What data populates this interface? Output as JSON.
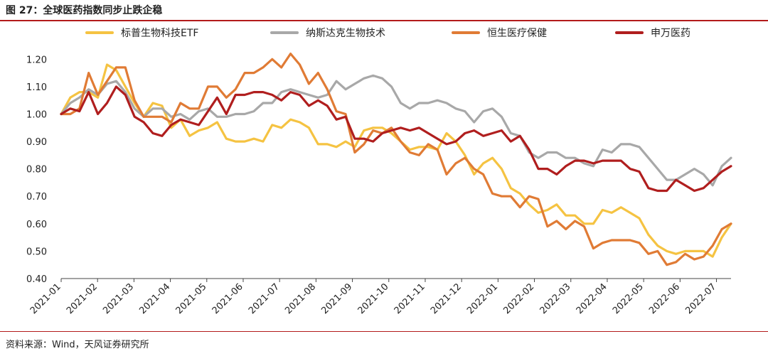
{
  "header": {
    "title": "图 27：全球医药指数同步止跌企稳"
  },
  "footer": {
    "source": "资料来源：Wind，天风证券研究所"
  },
  "colors": {
    "rule": "#b31b1b",
    "series": [
      "#f5c342",
      "#a8a8a8",
      "#e07b35",
      "#b01e1e"
    ]
  },
  "chart_data": {
    "type": "line",
    "xlabel": "",
    "ylabel": "",
    "ylim": [
      0.4,
      1.25
    ],
    "yticks": [
      "1.20",
      "1.10",
      "1.00",
      "0.90",
      "0.80",
      "0.70",
      "0.60",
      "0.50",
      "0.40"
    ],
    "xticks": [
      "2021-01",
      "2021-02",
      "2021-03",
      "2021-04",
      "2021-05",
      "2021-06",
      "2021-07",
      "2021-08",
      "2021-09",
      "2021-10",
      "2021-11",
      "2021-12",
      "2022-01",
      "2022-02",
      "2022-03",
      "2022-04",
      "2022-05",
      "2022-06",
      "2022-07"
    ],
    "legend_position": "top",
    "grid": false,
    "x": [
      "2021-01",
      "2021-01",
      "2021-01",
      "2021-01",
      "2021-02",
      "2021-02",
      "2021-02",
      "2021-02",
      "2021-03",
      "2021-03",
      "2021-03",
      "2021-03",
      "2021-04",
      "2021-04",
      "2021-04",
      "2021-04",
      "2021-05",
      "2021-05",
      "2021-05",
      "2021-05",
      "2021-06",
      "2021-06",
      "2021-06",
      "2021-06",
      "2021-07",
      "2021-07",
      "2021-07",
      "2021-07",
      "2021-08",
      "2021-08",
      "2021-08",
      "2021-08",
      "2021-09",
      "2021-09",
      "2021-09",
      "2021-09",
      "2021-10",
      "2021-10",
      "2021-10",
      "2021-10",
      "2021-11",
      "2021-11",
      "2021-11",
      "2021-11",
      "2021-12",
      "2021-12",
      "2021-12",
      "2021-12",
      "2022-01",
      "2022-01",
      "2022-01",
      "2022-01",
      "2022-02",
      "2022-02",
      "2022-02",
      "2022-02",
      "2022-03",
      "2022-03",
      "2022-03",
      "2022-03",
      "2022-04",
      "2022-04",
      "2022-04",
      "2022-04",
      "2022-05",
      "2022-05",
      "2022-05",
      "2022-05",
      "2022-06",
      "2022-06",
      "2022-06",
      "2022-06",
      "2022-07",
      "2022-07"
    ],
    "series": [
      {
        "name": "标普生物科技ETF",
        "values": [
          1.0,
          1.06,
          1.08,
          1.08,
          1.06,
          1.18,
          1.16,
          1.1,
          1.04,
          0.99,
          1.04,
          1.03,
          0.95,
          0.98,
          0.92,
          0.94,
          0.95,
          0.97,
          0.91,
          0.9,
          0.9,
          0.91,
          0.9,
          0.96,
          0.95,
          0.98,
          0.97,
          0.95,
          0.89,
          0.89,
          0.88,
          0.9,
          0.88,
          0.94,
          0.95,
          0.95,
          0.93,
          0.9,
          0.87,
          0.88,
          0.88,
          0.87,
          0.93,
          0.9,
          0.85,
          0.78,
          0.82,
          0.84,
          0.8,
          0.73,
          0.71,
          0.67,
          0.64,
          0.65,
          0.67,
          0.63,
          0.63,
          0.6,
          0.6,
          0.65,
          0.64,
          0.66,
          0.64,
          0.62,
          0.56,
          0.52,
          0.5,
          0.49,
          0.5,
          0.5,
          0.5,
          0.48,
          0.55,
          0.6
        ]
      },
      {
        "name": "纳斯达克生物技术",
        "values": [
          1.0,
          1.04,
          1.06,
          1.09,
          1.07,
          1.11,
          1.12,
          1.08,
          1.02,
          0.99,
          1.02,
          1.02,
          0.99,
          1.0,
          0.98,
          1.01,
          1.02,
          0.99,
          0.99,
          1.0,
          1.0,
          1.01,
          1.04,
          1.04,
          1.08,
          1.09,
          1.08,
          1.07,
          1.06,
          1.07,
          1.12,
          1.09,
          1.11,
          1.13,
          1.14,
          1.13,
          1.1,
          1.04,
          1.02,
          1.04,
          1.04,
          1.05,
          1.04,
          1.02,
          1.01,
          0.97,
          1.01,
          1.02,
          0.99,
          0.93,
          0.92,
          0.86,
          0.84,
          0.86,
          0.86,
          0.84,
          0.84,
          0.82,
          0.81,
          0.87,
          0.86,
          0.89,
          0.89,
          0.88,
          0.84,
          0.8,
          0.76,
          0.76,
          0.78,
          0.8,
          0.78,
          0.74,
          0.81,
          0.84
        ]
      },
      {
        "name": "恒生医疗保健",
        "values": [
          1.0,
          1.0,
          1.02,
          1.15,
          1.07,
          1.12,
          1.17,
          1.17,
          1.05,
          0.99,
          0.99,
          0.99,
          0.97,
          1.04,
          1.02,
          1.02,
          1.1,
          1.1,
          1.06,
          1.09,
          1.15,
          1.15,
          1.17,
          1.2,
          1.17,
          1.22,
          1.18,
          1.11,
          1.15,
          1.09,
          1.01,
          1.0,
          0.86,
          0.89,
          0.94,
          0.93,
          0.95,
          0.9,
          0.86,
          0.85,
          0.89,
          0.87,
          0.78,
          0.82,
          0.84,
          0.8,
          0.78,
          0.71,
          0.7,
          0.7,
          0.66,
          0.7,
          0.69,
          0.59,
          0.61,
          0.58,
          0.61,
          0.59,
          0.51,
          0.53,
          0.54,
          0.54,
          0.54,
          0.53,
          0.49,
          0.5,
          0.45,
          0.46,
          0.49,
          0.47,
          0.48,
          0.52,
          0.58,
          0.6
        ]
      },
      {
        "name": "申万医药",
        "values": [
          1.0,
          1.02,
          1.01,
          1.08,
          1.0,
          1.04,
          1.1,
          1.07,
          0.99,
          0.97,
          0.93,
          0.92,
          0.96,
          0.98,
          0.97,
          0.96,
          1.01,
          1.06,
          1.0,
          1.07,
          1.07,
          1.08,
          1.08,
          1.07,
          1.05,
          1.08,
          1.07,
          1.03,
          1.05,
          1.03,
          0.98,
          0.99,
          0.91,
          0.91,
          0.9,
          0.93,
          0.94,
          0.95,
          0.94,
          0.95,
          0.93,
          0.91,
          0.89,
          0.9,
          0.93,
          0.94,
          0.92,
          0.93,
          0.94,
          0.9,
          0.92,
          0.87,
          0.8,
          0.8,
          0.78,
          0.81,
          0.83,
          0.83,
          0.82,
          0.83,
          0.83,
          0.83,
          0.8,
          0.79,
          0.73,
          0.72,
          0.72,
          0.76,
          0.74,
          0.72,
          0.73,
          0.76,
          0.79,
          0.81
        ]
      }
    ]
  }
}
